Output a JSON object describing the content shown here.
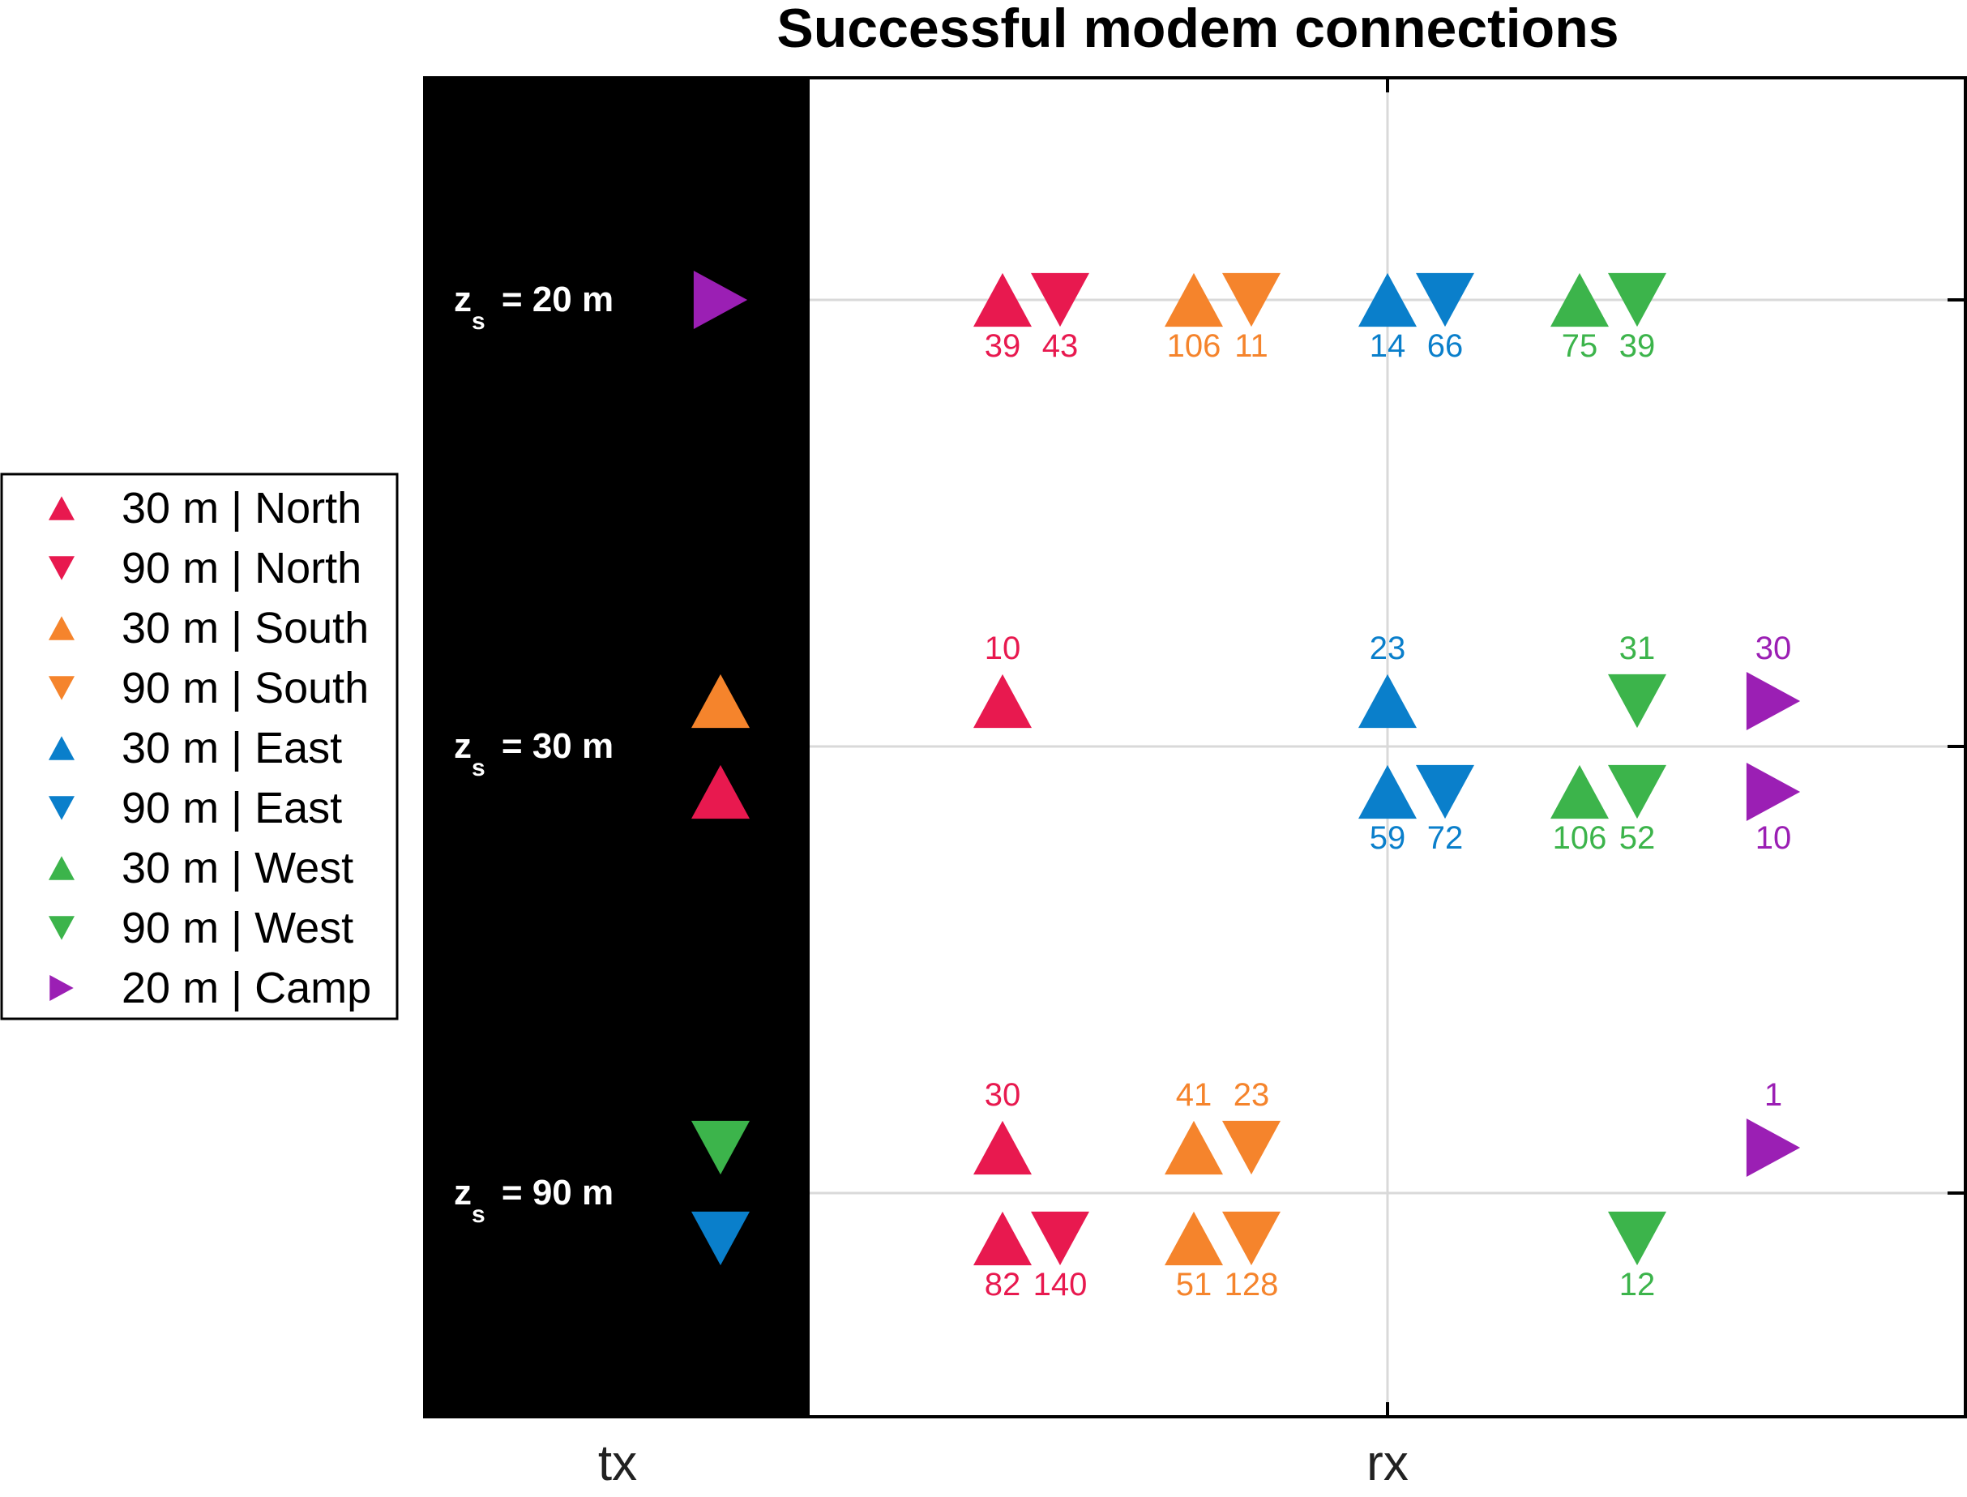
{
  "chart_data": {
    "type": "scatter",
    "title": "Successful modem connections",
    "x_categories": [
      "tx",
      "rx"
    ],
    "rows": [
      {
        "key": "z20",
        "label_prefix": "z",
        "label_subscript": "s",
        "label_suffix": " = 20 m"
      },
      {
        "key": "z30",
        "label_prefix": "z",
        "label_subscript": "s",
        "label_suffix": " = 30 m"
      },
      {
        "key": "z90",
        "label_prefix": "z",
        "label_subscript": "s",
        "label_suffix": " = 90 m"
      }
    ],
    "grid": true,
    "legend_position": "left",
    "legend": [
      {
        "label": "30 m | North",
        "group": "north",
        "shape": "up",
        "color": "#e8194f"
      },
      {
        "label": "90 m | North",
        "group": "north",
        "shape": "down",
        "color": "#e8194f"
      },
      {
        "label": "30 m | South",
        "group": "south",
        "shape": "up",
        "color": "#f5842c"
      },
      {
        "label": "90 m | South",
        "group": "south",
        "shape": "down",
        "color": "#f5842c"
      },
      {
        "label": "30 m | East",
        "group": "east",
        "shape": "up",
        "color": "#0a7fcb"
      },
      {
        "label": "90 m | East",
        "group": "east",
        "shape": "down",
        "color": "#0a7fcb"
      },
      {
        "label": "30 m | West",
        "group": "west",
        "shape": "up",
        "color": "#3cb44b"
      },
      {
        "label": "90 m | West",
        "group": "west",
        "shape": "down",
        "color": "#3cb44b"
      },
      {
        "label": "20 m | Camp",
        "group": "camp",
        "shape": "right",
        "color": "#9b1fb4"
      }
    ],
    "transmitters": [
      {
        "row": "z20",
        "position": "center",
        "color": "#9b1fb4",
        "shape": "right"
      },
      {
        "row": "z30",
        "position": "upper",
        "color": "#f5842c",
        "shape": "up"
      },
      {
        "row": "z30",
        "position": "lower",
        "color": "#e8194f",
        "shape": "up"
      },
      {
        "row": "z90",
        "position": "upper",
        "color": "#3cb44b",
        "shape": "down"
      },
      {
        "row": "z90",
        "position": "lower",
        "color": "#0a7fcb",
        "shape": "down"
      }
    ],
    "counts": [
      {
        "row": "z20",
        "position": "center",
        "values": [
          39,
          43,
          106,
          11,
          14,
          66,
          75,
          39,
          null
        ],
        "label_side": "below"
      },
      {
        "row": "z30",
        "position": "upper",
        "values": [
          10,
          null,
          null,
          null,
          23,
          null,
          null,
          31,
          30
        ],
        "label_side": "above"
      },
      {
        "row": "z30",
        "position": "lower",
        "values": [
          null,
          null,
          null,
          null,
          59,
          72,
          106,
          52,
          10
        ],
        "label_side": "below"
      },
      {
        "row": "z90",
        "position": "upper",
        "values": [
          30,
          null,
          41,
          23,
          null,
          null,
          null,
          null,
          1
        ],
        "label_side": "above"
      },
      {
        "row": "z90",
        "position": "lower",
        "values": [
          82,
          140,
          51,
          128,
          null,
          null,
          null,
          12,
          null
        ],
        "label_side": "below"
      }
    ]
  }
}
